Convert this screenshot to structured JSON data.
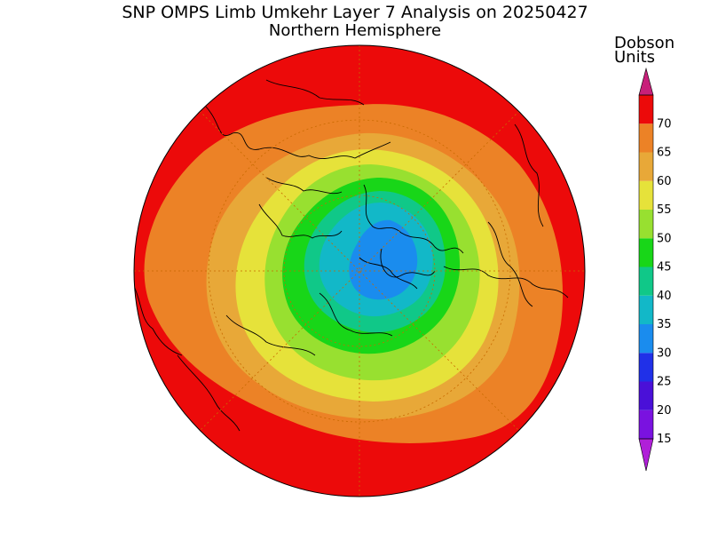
{
  "title": "SNP OMPS Limb Umkehr Layer 7 Analysis on 20250427",
  "subtitle": "Northern Hemisphere",
  "colorbar": {
    "label_line1": "Dobson",
    "label_line2": "Units",
    "levels": [
      {
        "value": "15",
        "color": "#7a12e0"
      },
      {
        "value": "20",
        "color": "#4a10d8"
      },
      {
        "value": "25",
        "color": "#2030e8"
      },
      {
        "value": "30",
        "color": "#1a8cee"
      },
      {
        "value": "35",
        "color": "#12b8c8"
      },
      {
        "value": "40",
        "color": "#10c888"
      },
      {
        "value": "45",
        "color": "#18d618"
      },
      {
        "value": "50",
        "color": "#98e030"
      },
      {
        "value": "55",
        "color": "#e6e23a"
      },
      {
        "value": "60",
        "color": "#e8a838"
      },
      {
        "value": "65",
        "color": "#ec8226"
      },
      {
        "value": "70",
        "color": "#ec0a0a"
      }
    ],
    "low_arrow_color": "#b020d8",
    "high_arrow_color": "#c8207a"
  }
}
